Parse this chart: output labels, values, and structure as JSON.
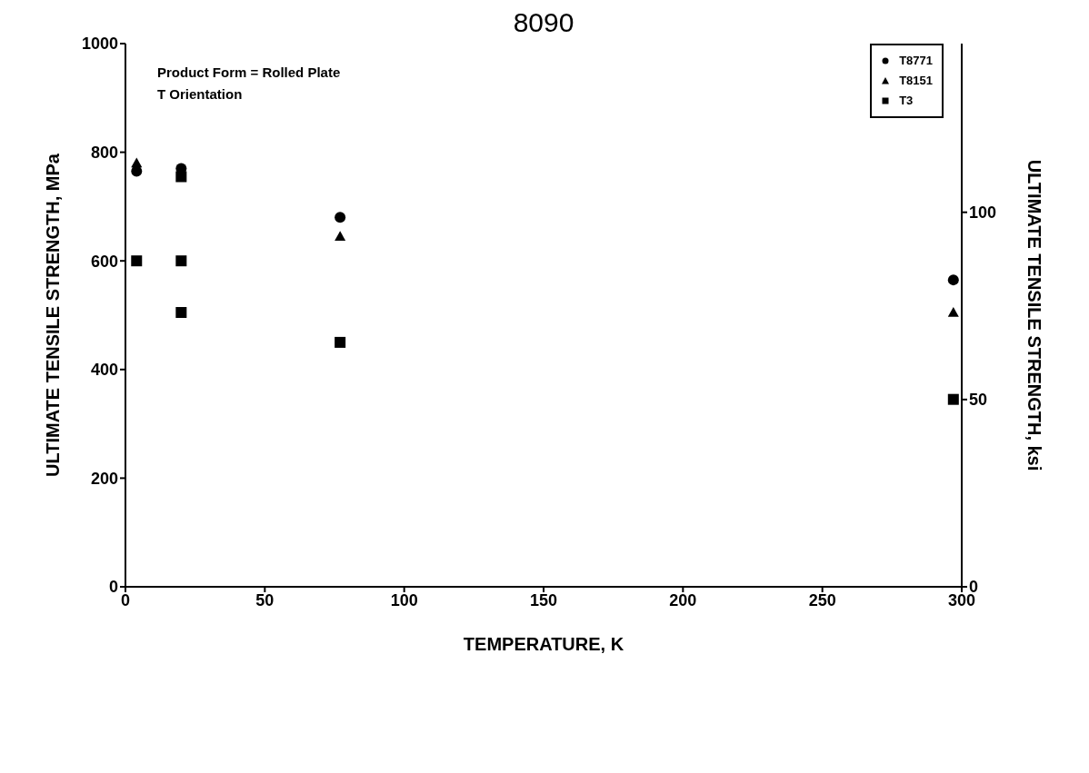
{
  "chart_data": {
    "type": "scatter",
    "title": "8090",
    "xlabel": "TEMPERATURE, K",
    "ylabel": "ULTIMATE TENSILE STRENGTH, MPa",
    "y2label": "ULTIMATE TENSILE STRENGTH, ksi",
    "annotations": [
      "Product Form = Rolled Plate",
      "T Orientation"
    ],
    "xlim": [
      0,
      300
    ],
    "xticks": [
      0,
      50,
      100,
      150,
      200,
      250,
      300
    ],
    "ylim": [
      0,
      1000
    ],
    "yticks": [
      0,
      200,
      400,
      600,
      800,
      1000
    ],
    "y2lim": [
      0,
      145.04
    ],
    "y2ticks": [
      0,
      50,
      100
    ],
    "grid": false,
    "legend": "top right",
    "series": [
      {
        "name": "T8771",
        "color": "#000000",
        "marker": "circle",
        "x": [
          4,
          20,
          77,
          297
        ],
        "values": [
          765,
          770,
          680,
          565
        ]
      },
      {
        "name": "T8151",
        "color": "#000000",
        "marker": "triangle",
        "x": [
          4,
          77,
          297
        ],
        "values": [
          780,
          645,
          505
        ]
      },
      {
        "name": "T3",
        "color": "#000000",
        "marker": "square",
        "x": [
          4,
          20,
          20,
          20,
          77,
          297
        ],
        "values": [
          600,
          755,
          600,
          505,
          450,
          345
        ]
      }
    ]
  }
}
